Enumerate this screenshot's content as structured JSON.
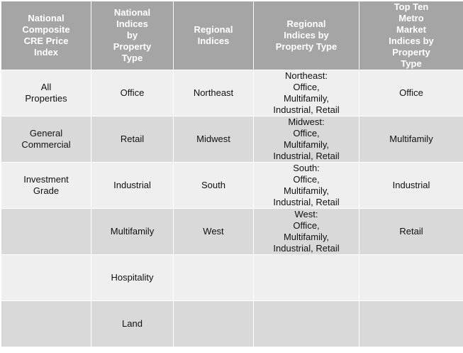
{
  "headers": [
    "National\nComposite\nCRE Price\nIndex",
    "National\nIndices\nby\nProperty\nType",
    "Regional\nIndices",
    "Regional\nIndices by\nProperty Type",
    "Top Ten\nMetro\nMarket\nIndices by\nProperty\nType"
  ],
  "rows": [
    [
      "All\nProperties",
      "Office",
      "Northeast",
      "Northeast:\nOffice,\nMultifamily,\nIndustrial, Retail",
      "Office"
    ],
    [
      "General\nCommercial",
      "Retail",
      "Midwest",
      "Midwest:\nOffice,\nMultifamily,\nIndustrial, Retail",
      "Multifamily"
    ],
    [
      "Investment\nGrade",
      "Industrial",
      "South",
      "South:\nOffice,\nMultifamily,\nIndustrial, Retail",
      "Industrial"
    ],
    [
      "",
      "Multifamily",
      "West",
      "West:\nOffice,\nMultifamily,\nIndustrial, Retail",
      "Retail"
    ],
    [
      "",
      "Hospitality",
      "",
      "",
      ""
    ],
    [
      "",
      "Land",
      "",
      "",
      ""
    ]
  ]
}
